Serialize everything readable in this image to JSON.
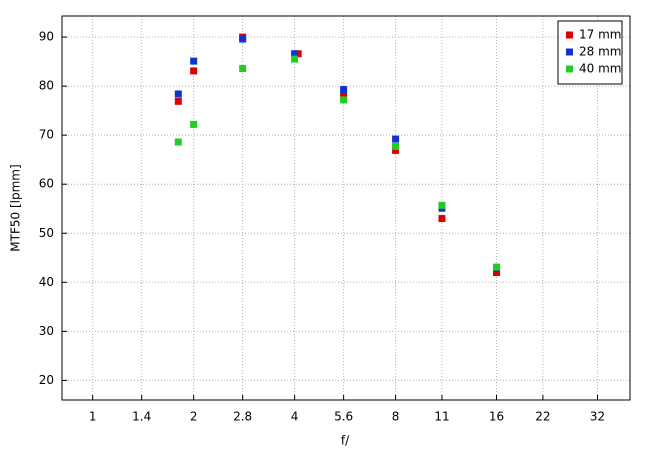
{
  "chart_data": {
    "type": "scatter",
    "x_label": "f/",
    "y_label": "MTF50 [lpmm]",
    "xscale": "log",
    "xlim": [
      0.81,
      40
    ],
    "xticks": [
      1,
      1.4,
      2,
      2.8,
      4,
      5.6,
      8,
      11,
      16,
      22,
      32
    ],
    "ylim": [
      16,
      94.3
    ],
    "yticks": [
      20,
      30,
      40,
      50,
      60,
      70,
      80,
      90
    ],
    "grid": true,
    "legend": "upper right",
    "series": [
      {
        "name": "17 mm",
        "color": "#dd0000",
        "x": [
          1.8,
          2,
          2.8,
          4.1,
          5.6,
          8,
          11,
          16
        ],
        "values": [
          76.9,
          83.1,
          90,
          86.6,
          78,
          66.9,
          53,
          42
        ]
      },
      {
        "name": "28 mm",
        "color": "#1133cc",
        "x": [
          1.8,
          2,
          2.8,
          4,
          5.6,
          8,
          11,
          16
        ],
        "values": [
          78.4,
          85.1,
          89.6,
          86.6,
          79.3,
          69.2,
          55.1,
          42.9
        ]
      },
      {
        "name": "40 mm",
        "color": "#22cc22",
        "x": [
          1.8,
          2,
          2.8,
          4,
          5.6,
          8,
          11,
          16
        ],
        "values": [
          68.6,
          72.2,
          83.6,
          85.5,
          77.2,
          67.7,
          55.7,
          43.1
        ]
      }
    ]
  }
}
